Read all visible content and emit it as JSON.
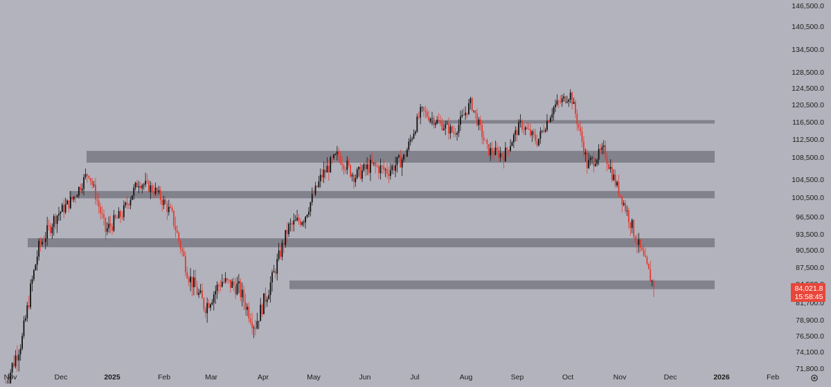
{
  "colors": {
    "background": "#b3b3bd",
    "up": "#111111",
    "down": "#e23a2e",
    "zone": "#6f6f78",
    "axis_text": "#1c1c1c",
    "price_tag": "#e8463a",
    "price_tag_text": "#ffffff"
  },
  "icons": {
    "settings": "gear-icon"
  },
  "chart_data": {
    "type": "candlestick",
    "title": "",
    "ylim": [
      71000,
      148000
    ],
    "x_tick_labels": [
      "Nov",
      "Dec",
      "2025",
      "Feb",
      "Mar",
      "Apr",
      "May",
      "Jun",
      "Jul",
      "Aug",
      "Sep",
      "Oct",
      "Nov",
      "Dec",
      "2026",
      "Feb"
    ],
    "y_tick_labels": [
      "146,500.0",
      "140,500.0",
      "134,500.0",
      "128,500.0",
      "124,500.0",
      "120,500.0",
      "116,500.0",
      "112,500.0",
      "108,500.0",
      "104,500.0",
      "100,500.0",
      "96,500.0",
      "93,500.0",
      "90,500.0",
      "87,500.0",
      "84,500.0",
      "81,700.0",
      "78,900.0",
      "76,500.0",
      "74,100.0",
      "71,800.0"
    ],
    "last_price_label": "84,021.8",
    "countdown_label": "15:58:45",
    "last_price": 84021.8,
    "zones": [
      {
        "from": 107500,
        "to": 109900,
        "start": "Dec"
      },
      {
        "from": 100300,
        "to": 101900,
        "start": "Dec"
      },
      {
        "from": 91000,
        "to": 92700,
        "start": "Nov"
      },
      {
        "from": 83700,
        "to": 85100,
        "start": "Apr"
      },
      {
        "from": 116100,
        "to": 116900,
        "start": "Jul"
      }
    ],
    "series": [
      {
        "anchors": [
          [
            "Nov",
            69500
          ],
          [
            "Nov+",
            76000
          ],
          [
            "Dec-",
            91000
          ],
          [
            "Dec",
            96500
          ],
          [
            "Dec+",
            100000
          ],
          [
            "Dec++",
            106000
          ],
          [
            "2025-",
            94000
          ],
          [
            "2025",
            97000
          ],
          [
            "Feb-",
            104000
          ],
          [
            "Feb",
            102000
          ],
          [
            "Feb+",
            97000
          ],
          [
            "Mar-",
            86000
          ],
          [
            "Mar",
            81000
          ],
          [
            "Mar+",
            85000
          ],
          [
            "Apr-",
            84000
          ],
          [
            "Apr",
            78000
          ],
          [
            "Apr+",
            85000
          ],
          [
            "May-",
            94500
          ],
          [
            "May",
            96500
          ],
          [
            "May+",
            105000
          ],
          [
            "Jun-",
            109000
          ],
          [
            "Jun",
            105000
          ],
          [
            "Jun+",
            107000
          ],
          [
            "Jul-",
            106000
          ],
          [
            "Jul",
            108500
          ],
          [
            "Jul+",
            119000
          ],
          [
            "Aug-",
            116500
          ],
          [
            "Aug",
            114000
          ],
          [
            "Aug+",
            121000
          ],
          [
            "Sep-",
            110000
          ],
          [
            "Sep",
            109000
          ],
          [
            "Sep+",
            116000
          ],
          [
            "Oct-",
            112000
          ],
          [
            "Oct",
            120000
          ],
          [
            "Oct+",
            123000
          ],
          [
            "Nov-",
            107000
          ],
          [
            "Nov",
            110000
          ],
          [
            "Nov+",
            101000
          ],
          [
            "Nov++",
            92000
          ],
          [
            "Dec-",
            84021.8
          ]
        ]
      }
    ]
  }
}
